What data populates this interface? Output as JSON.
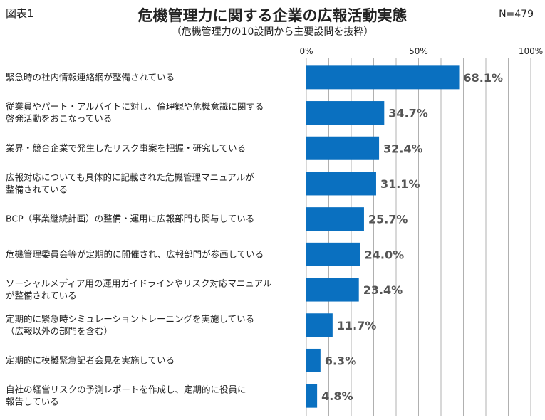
{
  "figure_label": "図表1",
  "title": "危機管理力に関する企業の広報活動実態",
  "subtitle": "（危機管理力の10設問から主要設問を抜粋）",
  "sample_size": "N=479",
  "colors": {
    "bar": "#0a70c0",
    "grid": "#b0b0b0",
    "value_text": "#555555"
  },
  "chart_data": {
    "type": "bar",
    "orientation": "horizontal",
    "title": "危機管理力に関する企業の広報活動実態",
    "xlim": [
      0,
      100
    ],
    "ticks": [
      {
        "value": 0,
        "label": "0%"
      },
      {
        "value": 50,
        "label": "50%"
      },
      {
        "value": 100,
        "label": "100%"
      }
    ],
    "grid_step": 10,
    "categories": [
      [
        "緊急時の社内情報連絡網が整備されている"
      ],
      [
        "従業員やパート・アルバイトに対し、倫理観や危機意識に関する",
        "啓発活動をおこなっている"
      ],
      [
        "業界・競合企業で発生したリスク事案を把握・研究している"
      ],
      [
        "広報対応についても具体的に記載された危機管理マニュアルが",
        "整備されている"
      ],
      [
        "BCP（事業継続計画）の整備・運用に広報部門も関与している"
      ],
      [
        "危機管理委員会等が定期的に開催され、広報部門が参画している"
      ],
      [
        "ソーシャルメディア用の運用ガイドラインやリスク対応マニュアル",
        "が整備されている"
      ],
      [
        "定期的に緊急時シミュレーショントレーニングを実施している",
        "（広報以外の部門を含む）"
      ],
      [
        "定期的に模擬緊急記者会見を実施している"
      ],
      [
        "自社の経営リスクの予測レポートを作成し、定期的に役員に",
        "報告している"
      ]
    ],
    "values": [
      68.1,
      34.7,
      32.4,
      31.1,
      25.7,
      24.0,
      23.4,
      11.7,
      6.3,
      4.8
    ],
    "value_labels": [
      "68.1%",
      "34.7%",
      "32.4%",
      "31.1%",
      "25.7%",
      "24.0%",
      "23.4%",
      "11.7%",
      "6.3%",
      "4.8%"
    ]
  }
}
